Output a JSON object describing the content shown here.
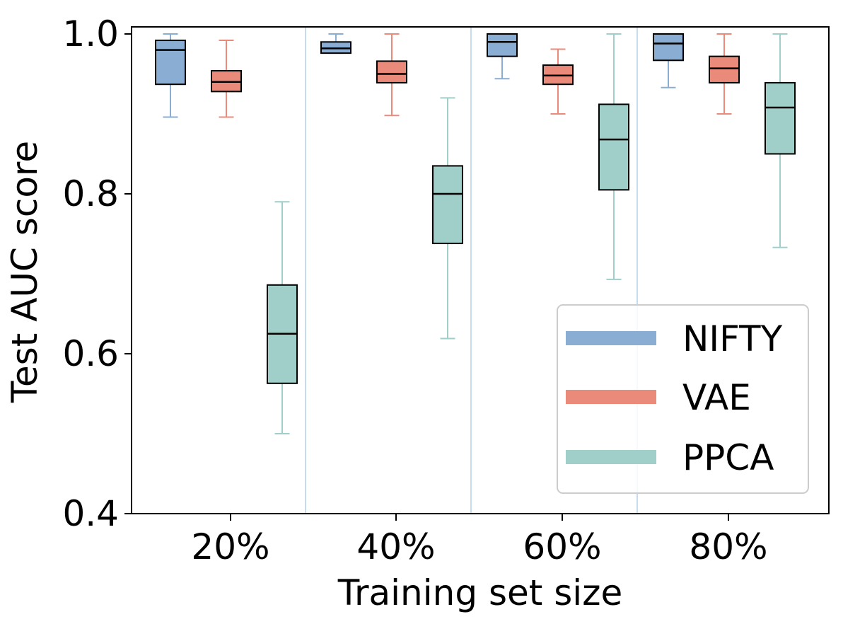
{
  "chart_data": {
    "type": "box",
    "xlabel": "Training set size",
    "ylabel": "Test AUC score",
    "ylim": [
      0.4,
      1.0
    ],
    "yticks": [
      "0.4",
      "0.6",
      "0.8",
      "1.0"
    ],
    "categories": [
      "20%",
      "40%",
      "60%",
      "80%"
    ],
    "legend_position": "lower-right",
    "series": [
      {
        "name": "NIFTY",
        "color": "#8aadd3",
        "whisker_color": "#8aadd3",
        "boxes": [
          {
            "whislo": 0.896,
            "q1": 0.937,
            "med": 0.98,
            "q3": 0.992,
            "whishi": 1.0
          },
          {
            "whislo": 0.976,
            "q1": 0.976,
            "med": 0.982,
            "q3": 0.99,
            "whishi": 1.0
          },
          {
            "whislo": 0.944,
            "q1": 0.972,
            "med": 0.99,
            "q3": 1.0,
            "whishi": 1.0
          },
          {
            "whislo": 0.933,
            "q1": 0.967,
            "med": 0.988,
            "q3": 1.0,
            "whishi": 1.0
          }
        ]
      },
      {
        "name": "VAE",
        "color": "#ea8a7b",
        "whisker_color": "#ea8a7b",
        "boxes": [
          {
            "whislo": 0.896,
            "q1": 0.928,
            "med": 0.94,
            "q3": 0.954,
            "whishi": 0.992
          },
          {
            "whislo": 0.898,
            "q1": 0.939,
            "med": 0.95,
            "q3": 0.966,
            "whishi": 1.0
          },
          {
            "whislo": 0.9,
            "q1": 0.937,
            "med": 0.948,
            "q3": 0.961,
            "whishi": 0.981
          },
          {
            "whislo": 0.9,
            "q1": 0.939,
            "med": 0.957,
            "q3": 0.972,
            "whishi": 1.0
          }
        ]
      },
      {
        "name": "PPCA",
        "color": "#9fcfc8",
        "whisker_color": "#9fcfc8",
        "boxes": [
          {
            "whislo": 0.5,
            "q1": 0.563,
            "med": 0.625,
            "q3": 0.686,
            "whishi": 0.79
          },
          {
            "whislo": 0.619,
            "q1": 0.738,
            "med": 0.8,
            "q3": 0.835,
            "whishi": 0.92
          },
          {
            "whislo": 0.693,
            "q1": 0.805,
            "med": 0.868,
            "q3": 0.912,
            "whishi": 1.0
          },
          {
            "whislo": 0.733,
            "q1": 0.85,
            "med": 0.908,
            "q3": 0.939,
            "whishi": 1.0
          }
        ]
      }
    ]
  }
}
